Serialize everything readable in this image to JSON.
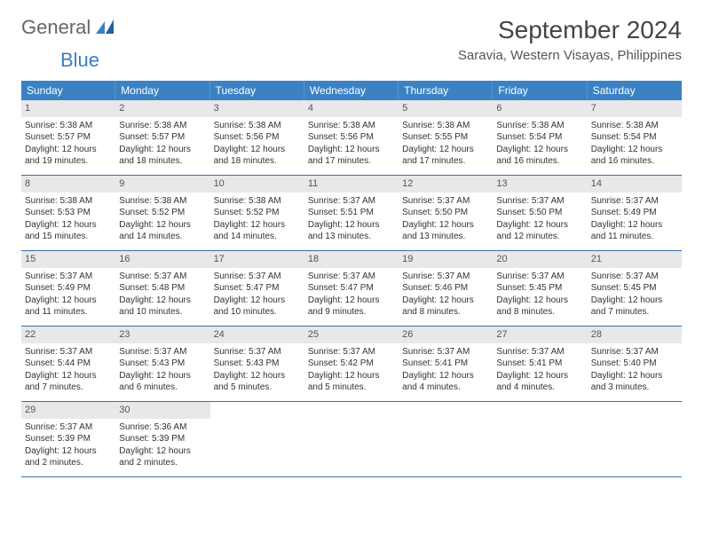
{
  "logo": {
    "text_general": "General",
    "text_blue": "Blue"
  },
  "title": {
    "month": "September 2024",
    "location": "Saravia, Western Visayas, Philippines"
  },
  "colors": {
    "header_bg": "#3b82c4",
    "header_text": "#ffffff",
    "daynum_bg": "#e8e8e8",
    "row_border": "#3b6fa0",
    "text": "#333333",
    "logo_blue": "#3b7fc4"
  },
  "dow": [
    "Sunday",
    "Monday",
    "Tuesday",
    "Wednesday",
    "Thursday",
    "Friday",
    "Saturday"
  ],
  "weeks": [
    [
      {
        "n": "1",
        "sr": "Sunrise: 5:38 AM",
        "ss": "Sunset: 5:57 PM",
        "d1": "Daylight: 12 hours",
        "d2": "and 19 minutes."
      },
      {
        "n": "2",
        "sr": "Sunrise: 5:38 AM",
        "ss": "Sunset: 5:57 PM",
        "d1": "Daylight: 12 hours",
        "d2": "and 18 minutes."
      },
      {
        "n": "3",
        "sr": "Sunrise: 5:38 AM",
        "ss": "Sunset: 5:56 PM",
        "d1": "Daylight: 12 hours",
        "d2": "and 18 minutes."
      },
      {
        "n": "4",
        "sr": "Sunrise: 5:38 AM",
        "ss": "Sunset: 5:56 PM",
        "d1": "Daylight: 12 hours",
        "d2": "and 17 minutes."
      },
      {
        "n": "5",
        "sr": "Sunrise: 5:38 AM",
        "ss": "Sunset: 5:55 PM",
        "d1": "Daylight: 12 hours",
        "d2": "and 17 minutes."
      },
      {
        "n": "6",
        "sr": "Sunrise: 5:38 AM",
        "ss": "Sunset: 5:54 PM",
        "d1": "Daylight: 12 hours",
        "d2": "and 16 minutes."
      },
      {
        "n": "7",
        "sr": "Sunrise: 5:38 AM",
        "ss": "Sunset: 5:54 PM",
        "d1": "Daylight: 12 hours",
        "d2": "and 16 minutes."
      }
    ],
    [
      {
        "n": "8",
        "sr": "Sunrise: 5:38 AM",
        "ss": "Sunset: 5:53 PM",
        "d1": "Daylight: 12 hours",
        "d2": "and 15 minutes."
      },
      {
        "n": "9",
        "sr": "Sunrise: 5:38 AM",
        "ss": "Sunset: 5:52 PM",
        "d1": "Daylight: 12 hours",
        "d2": "and 14 minutes."
      },
      {
        "n": "10",
        "sr": "Sunrise: 5:38 AM",
        "ss": "Sunset: 5:52 PM",
        "d1": "Daylight: 12 hours",
        "d2": "and 14 minutes."
      },
      {
        "n": "11",
        "sr": "Sunrise: 5:37 AM",
        "ss": "Sunset: 5:51 PM",
        "d1": "Daylight: 12 hours",
        "d2": "and 13 minutes."
      },
      {
        "n": "12",
        "sr": "Sunrise: 5:37 AM",
        "ss": "Sunset: 5:50 PM",
        "d1": "Daylight: 12 hours",
        "d2": "and 13 minutes."
      },
      {
        "n": "13",
        "sr": "Sunrise: 5:37 AM",
        "ss": "Sunset: 5:50 PM",
        "d1": "Daylight: 12 hours",
        "d2": "and 12 minutes."
      },
      {
        "n": "14",
        "sr": "Sunrise: 5:37 AM",
        "ss": "Sunset: 5:49 PM",
        "d1": "Daylight: 12 hours",
        "d2": "and 11 minutes."
      }
    ],
    [
      {
        "n": "15",
        "sr": "Sunrise: 5:37 AM",
        "ss": "Sunset: 5:49 PM",
        "d1": "Daylight: 12 hours",
        "d2": "and 11 minutes."
      },
      {
        "n": "16",
        "sr": "Sunrise: 5:37 AM",
        "ss": "Sunset: 5:48 PM",
        "d1": "Daylight: 12 hours",
        "d2": "and 10 minutes."
      },
      {
        "n": "17",
        "sr": "Sunrise: 5:37 AM",
        "ss": "Sunset: 5:47 PM",
        "d1": "Daylight: 12 hours",
        "d2": "and 10 minutes."
      },
      {
        "n": "18",
        "sr": "Sunrise: 5:37 AM",
        "ss": "Sunset: 5:47 PM",
        "d1": "Daylight: 12 hours",
        "d2": "and 9 minutes."
      },
      {
        "n": "19",
        "sr": "Sunrise: 5:37 AM",
        "ss": "Sunset: 5:46 PM",
        "d1": "Daylight: 12 hours",
        "d2": "and 8 minutes."
      },
      {
        "n": "20",
        "sr": "Sunrise: 5:37 AM",
        "ss": "Sunset: 5:45 PM",
        "d1": "Daylight: 12 hours",
        "d2": "and 8 minutes."
      },
      {
        "n": "21",
        "sr": "Sunrise: 5:37 AM",
        "ss": "Sunset: 5:45 PM",
        "d1": "Daylight: 12 hours",
        "d2": "and 7 minutes."
      }
    ],
    [
      {
        "n": "22",
        "sr": "Sunrise: 5:37 AM",
        "ss": "Sunset: 5:44 PM",
        "d1": "Daylight: 12 hours",
        "d2": "and 7 minutes."
      },
      {
        "n": "23",
        "sr": "Sunrise: 5:37 AM",
        "ss": "Sunset: 5:43 PM",
        "d1": "Daylight: 12 hours",
        "d2": "and 6 minutes."
      },
      {
        "n": "24",
        "sr": "Sunrise: 5:37 AM",
        "ss": "Sunset: 5:43 PM",
        "d1": "Daylight: 12 hours",
        "d2": "and 5 minutes."
      },
      {
        "n": "25",
        "sr": "Sunrise: 5:37 AM",
        "ss": "Sunset: 5:42 PM",
        "d1": "Daylight: 12 hours",
        "d2": "and 5 minutes."
      },
      {
        "n": "26",
        "sr": "Sunrise: 5:37 AM",
        "ss": "Sunset: 5:41 PM",
        "d1": "Daylight: 12 hours",
        "d2": "and 4 minutes."
      },
      {
        "n": "27",
        "sr": "Sunrise: 5:37 AM",
        "ss": "Sunset: 5:41 PM",
        "d1": "Daylight: 12 hours",
        "d2": "and 4 minutes."
      },
      {
        "n": "28",
        "sr": "Sunrise: 5:37 AM",
        "ss": "Sunset: 5:40 PM",
        "d1": "Daylight: 12 hours",
        "d2": "and 3 minutes."
      }
    ],
    [
      {
        "n": "29",
        "sr": "Sunrise: 5:37 AM",
        "ss": "Sunset: 5:39 PM",
        "d1": "Daylight: 12 hours",
        "d2": "and 2 minutes."
      },
      {
        "n": "30",
        "sr": "Sunrise: 5:36 AM",
        "ss": "Sunset: 5:39 PM",
        "d1": "Daylight: 12 hours",
        "d2": "and 2 minutes."
      },
      null,
      null,
      null,
      null,
      null
    ]
  ]
}
